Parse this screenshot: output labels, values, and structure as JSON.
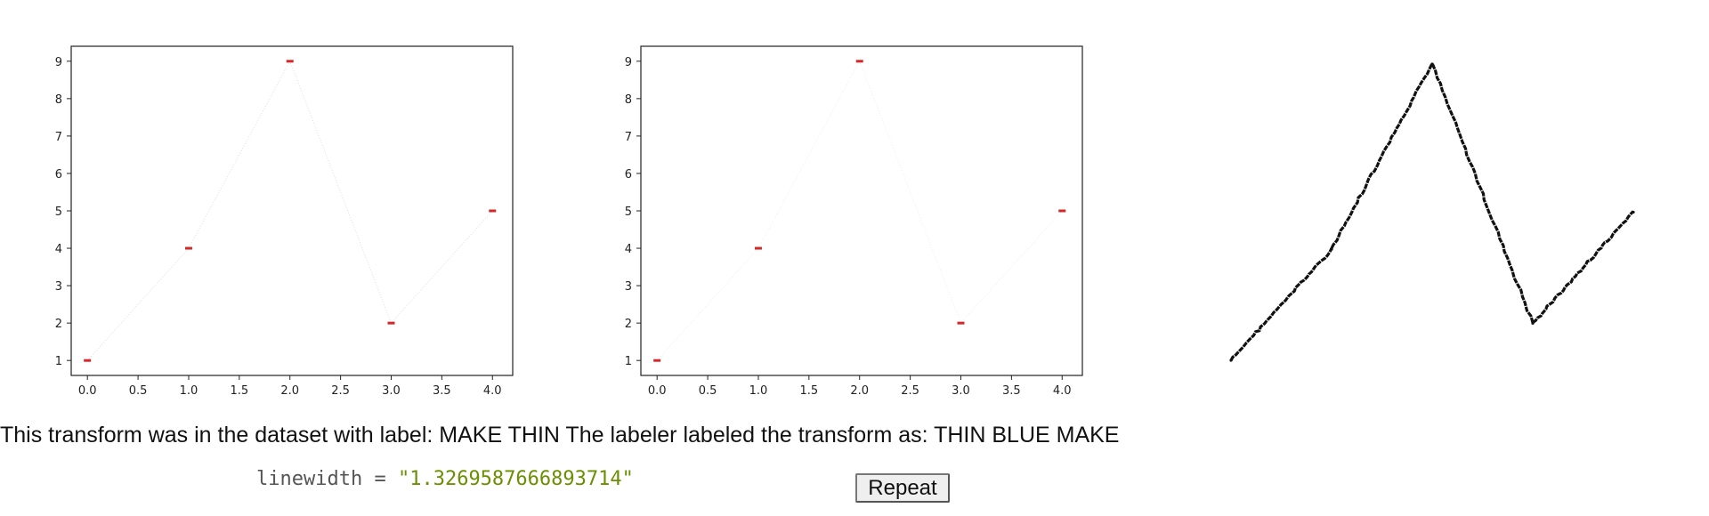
{
  "chart_data": [
    {
      "type": "line",
      "x": [
        0,
        1,
        2,
        3,
        4
      ],
      "y": [
        1,
        4,
        9,
        2,
        5
      ],
      "xlim": [
        -0.16,
        4.2
      ],
      "ylim": [
        0.6,
        9.4
      ],
      "xticks": [
        0,
        0.5,
        1,
        1.5,
        2,
        2.5,
        3,
        3.5,
        4
      ],
      "xtick_labels": [
        "0.0",
        "0.5",
        "1.0",
        "1.5",
        "2.0",
        "2.5",
        "3.0",
        "3.5",
        "4.0"
      ],
      "yticks": [
        1,
        2,
        3,
        4,
        5,
        6,
        7,
        8,
        9
      ],
      "ytick_labels": [
        "1",
        "2",
        "3",
        "4",
        "5",
        "6",
        "7",
        "8",
        "9"
      ],
      "title": "",
      "xlabel": "",
      "ylabel": "",
      "grid": false,
      "line_color": "#dddddd",
      "line_style": "dotted",
      "marker": "hline",
      "marker_color": "#d62728"
    },
    {
      "type": "line",
      "x": [
        0,
        1,
        2,
        3,
        4
      ],
      "y": [
        1,
        4,
        9,
        2,
        5
      ],
      "xlim": [
        -0.16,
        4.2
      ],
      "ylim": [
        0.6,
        9.4
      ],
      "xticks": [
        0,
        0.5,
        1,
        1.5,
        2,
        2.5,
        3,
        3.5,
        4
      ],
      "xtick_labels": [
        "0.0",
        "0.5",
        "1.0",
        "1.5",
        "2.0",
        "2.5",
        "3.0",
        "3.5",
        "4.0"
      ],
      "yticks": [
        1,
        2,
        3,
        4,
        5,
        6,
        7,
        8,
        9
      ],
      "ytick_labels": [
        "1",
        "2",
        "3",
        "4",
        "5",
        "6",
        "7",
        "8",
        "9"
      ],
      "title": "",
      "xlabel": "",
      "ylabel": "",
      "grid": false,
      "line_color": "#eeeeee",
      "line_style": "dotted",
      "marker": "hline",
      "marker_color": "#d62728"
    },
    {
      "type": "line",
      "x": [
        0,
        1,
        2,
        3,
        4
      ],
      "y": [
        1,
        4,
        9,
        2,
        5
      ],
      "xlim": [
        0,
        4
      ],
      "ylim": [
        1,
        9
      ],
      "axes": false,
      "title": "",
      "xlabel": "",
      "ylabel": "",
      "line_color": "#111111",
      "line_style": "sketch"
    }
  ],
  "caption": "This transform was in the dataset with label: MAKE THIN The labeler labeled the transform as: THIN BLUE MAKE",
  "param": {
    "key": "linewidth",
    "op": " = ",
    "value": "\"1.3269587666893714\""
  },
  "repeat_label": "Repeat"
}
